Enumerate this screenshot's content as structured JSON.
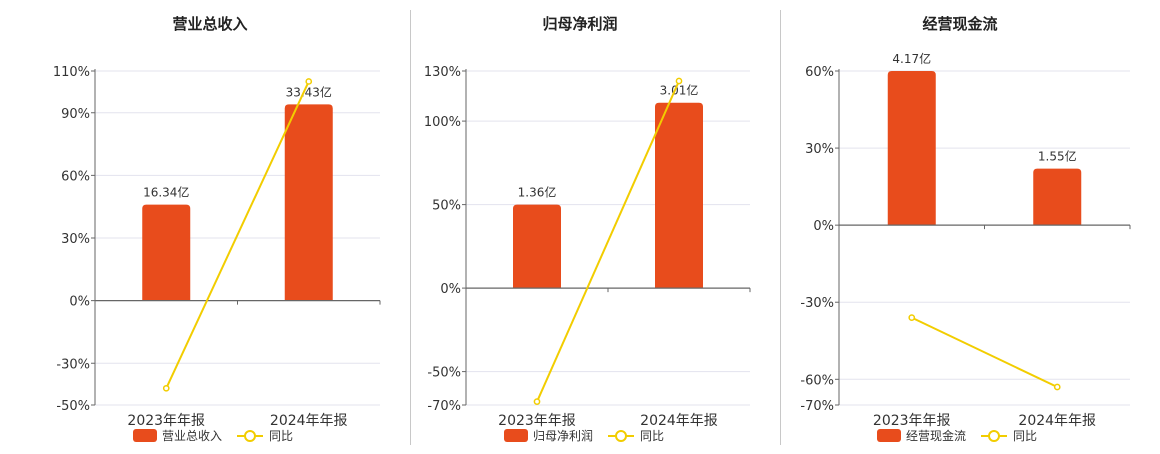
{
  "legend_line_label": "同比",
  "colors": {
    "bar": "#e84c1c",
    "line": "#f2cd00",
    "axis": "#666666",
    "grid": "#e3e3ee",
    "text": "#333333"
  },
  "chart_data": [
    {
      "type": "bar",
      "title": "营业总收入",
      "categories": [
        "2023年年报",
        "2024年年报"
      ],
      "series": [
        {
          "name": "营业总收入",
          "type": "bar",
          "values": [
            46,
            94
          ],
          "labels": [
            "16.34亿",
            "33.43亿"
          ]
        },
        {
          "name": "同比",
          "type": "line",
          "values": [
            -42,
            105
          ]
        }
      ],
      "y_ticks": [
        -50,
        -30,
        0,
        30,
        60,
        90,
        110
      ],
      "ylim": [
        -50,
        110
      ],
      "tick_format": "percent",
      "grid": true,
      "legend_position": "bottom"
    },
    {
      "type": "bar",
      "title": "归母净利润",
      "categories": [
        "2023年年报",
        "2024年年报"
      ],
      "series": [
        {
          "name": "归母净利润",
          "type": "bar",
          "values": [
            50,
            111
          ],
          "labels": [
            "1.36亿",
            "3.01亿"
          ]
        },
        {
          "name": "同比",
          "type": "line",
          "values": [
            -68,
            124
          ]
        }
      ],
      "y_ticks": [
        -70,
        -50,
        0,
        50,
        100,
        130
      ],
      "ylim": [
        -70,
        130
      ],
      "tick_format": "percent",
      "grid": true,
      "legend_position": "bottom"
    },
    {
      "type": "bar",
      "title": "经营现金流",
      "categories": [
        "2023年年报",
        "2024年年报"
      ],
      "series": [
        {
          "name": "经营现金流",
          "type": "bar",
          "values": [
            60,
            22
          ],
          "labels": [
            "4.17亿",
            "1.55亿"
          ]
        },
        {
          "name": "同比",
          "type": "line",
          "values": [
            -36,
            -63
          ]
        }
      ],
      "y_ticks": [
        -70,
        -60,
        -30,
        0,
        30,
        60
      ],
      "ylim": [
        -70,
        60
      ],
      "tick_format": "percent",
      "grid": true,
      "legend_position": "bottom"
    }
  ]
}
